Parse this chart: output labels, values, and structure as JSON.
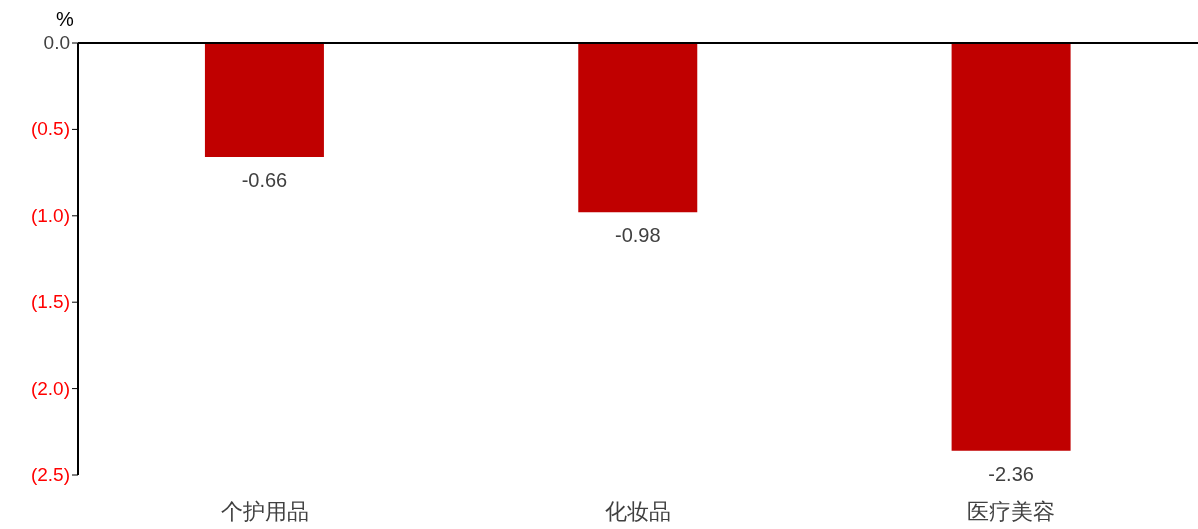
{
  "chart_data": {
    "type": "bar",
    "ylabel": "%",
    "categories": [
      "个护用品",
      "化妆品",
      "医疗美容"
    ],
    "values": [
      -0.66,
      -0.98,
      -2.36
    ],
    "color": "#c00000",
    "ylim": [
      -2.5,
      0
    ],
    "yticks": [
      {
        "value": 0,
        "label": "0.0"
      },
      {
        "value": -0.5,
        "label": "(0.5)"
      },
      {
        "value": -1,
        "label": "(1.0)"
      },
      {
        "value": -1.5,
        "label": "(1.5)"
      },
      {
        "value": -2,
        "label": "(2.0)"
      },
      {
        "value": -2.5,
        "label": "(2.5)"
      }
    ],
    "data_labels": true,
    "grid": false,
    "legend": false
  }
}
